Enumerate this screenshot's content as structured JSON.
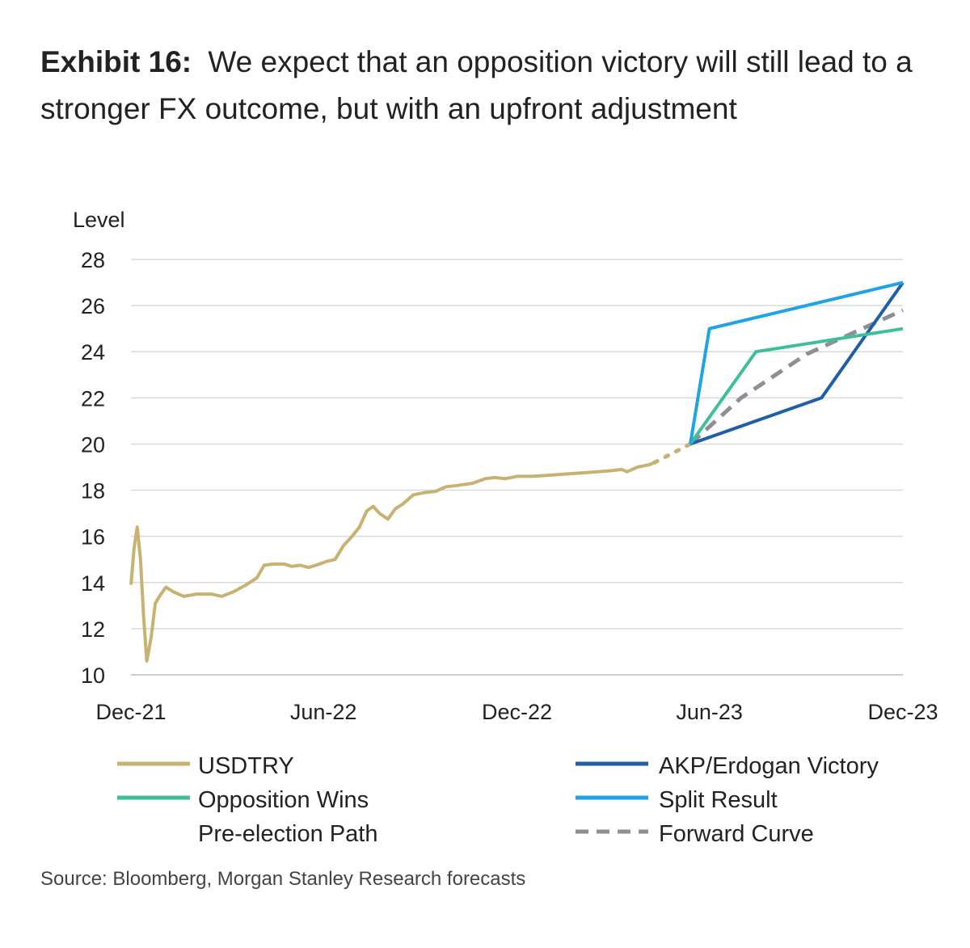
{
  "header": {
    "exhibit": "Exhibit 16:",
    "title": "We expect that an opposition victory will still lead to a stronger FX outcome, but with an upfront adjustment"
  },
  "source": "Source: Bloomberg, Morgan Stanley Research forecasts",
  "colors": {
    "usdtry": "#c8b272",
    "akp": "#1f5ea8",
    "opposition": "#3dbf9c",
    "split": "#1ea3e6",
    "preelection": "#c8b272",
    "forward": "#8e8e96",
    "grid": "#d9d9d9",
    "axis": "#bdbdbd"
  },
  "chart_data": {
    "type": "line",
    "ylabel": "Level",
    "ylim": [
      10,
      28
    ],
    "yticks": [
      10,
      12,
      14,
      16,
      18,
      20,
      22,
      24,
      26,
      28
    ],
    "xlim": [
      "2021-12-01",
      "2023-12-01"
    ],
    "xticks": [
      {
        "date": "2021-12-01",
        "label": "Dec-21"
      },
      {
        "date": "2022-06-01",
        "label": "Jun-22"
      },
      {
        "date": "2022-12-01",
        "label": "Dec-22"
      },
      {
        "date": "2023-06-01",
        "label": "Jun-23"
      },
      {
        "date": "2023-12-01",
        "label": "Dec-23"
      }
    ],
    "grid": true,
    "legend_position": "bottom",
    "series": [
      {
        "key": "usdtry",
        "name": "USDTRY",
        "style": "solid",
        "points": [
          [
            "2021-12-01",
            13.9
          ],
          [
            "2021-12-04",
            15.5
          ],
          [
            "2021-12-07",
            16.4
          ],
          [
            "2021-12-10",
            15.0
          ],
          [
            "2021-12-13",
            12.5
          ],
          [
            "2021-12-16",
            10.6
          ],
          [
            "2021-12-20",
            11.6
          ],
          [
            "2021-12-24",
            13.1
          ],
          [
            "2021-12-28",
            13.4
          ],
          [
            "2022-01-03",
            13.8
          ],
          [
            "2022-01-10",
            13.6
          ],
          [
            "2022-01-20",
            13.4
          ],
          [
            "2022-02-01",
            13.5
          ],
          [
            "2022-02-15",
            13.5
          ],
          [
            "2022-02-25",
            13.4
          ],
          [
            "2022-03-08",
            13.6
          ],
          [
            "2022-03-20",
            13.9
          ],
          [
            "2022-03-30",
            14.2
          ],
          [
            "2022-04-06",
            14.75
          ],
          [
            "2022-04-15",
            14.8
          ],
          [
            "2022-04-25",
            14.8
          ],
          [
            "2022-05-02",
            14.7
          ],
          [
            "2022-05-10",
            14.75
          ],
          [
            "2022-05-18",
            14.65
          ],
          [
            "2022-05-25",
            14.75
          ],
          [
            "2022-06-03",
            14.9
          ],
          [
            "2022-06-12",
            15.0
          ],
          [
            "2022-06-20",
            15.6
          ],
          [
            "2022-06-28",
            16.0
          ],
          [
            "2022-07-05",
            16.4
          ],
          [
            "2022-07-12",
            17.1
          ],
          [
            "2022-07-18",
            17.3
          ],
          [
            "2022-07-24",
            17.0
          ],
          [
            "2022-08-01",
            16.75
          ],
          [
            "2022-08-08",
            17.2
          ],
          [
            "2022-08-15",
            17.4
          ],
          [
            "2022-08-25",
            17.8
          ],
          [
            "2022-09-05",
            17.9
          ],
          [
            "2022-09-15",
            17.95
          ],
          [
            "2022-09-25",
            18.15
          ],
          [
            "2022-10-05",
            18.2
          ],
          [
            "2022-10-20",
            18.3
          ],
          [
            "2022-11-01",
            18.5
          ],
          [
            "2022-11-10",
            18.55
          ],
          [
            "2022-11-20",
            18.5
          ],
          [
            "2022-12-01",
            18.6
          ],
          [
            "2022-12-15",
            18.6
          ],
          [
            "2023-01-01",
            18.65
          ],
          [
            "2023-01-15",
            18.7
          ],
          [
            "2023-02-01",
            18.75
          ],
          [
            "2023-02-15",
            18.8
          ],
          [
            "2023-03-01",
            18.85
          ],
          [
            "2023-03-10",
            18.9
          ],
          [
            "2023-03-15",
            18.8
          ],
          [
            "2023-03-25",
            19.0
          ],
          [
            "2023-04-05",
            19.1
          ],
          [
            "2023-04-10",
            19.2
          ]
        ]
      },
      {
        "key": "preelection",
        "name": "Pre-election Path",
        "style": "dotted",
        "points": [
          [
            "2023-04-10",
            19.2
          ],
          [
            "2023-05-14",
            20.0
          ]
        ]
      },
      {
        "key": "akp",
        "name": "AKP/Erdogan Victory",
        "style": "solid",
        "points": [
          [
            "2023-05-14",
            20.0
          ],
          [
            "2023-09-15",
            22.0
          ],
          [
            "2023-12-01",
            27.0
          ]
        ]
      },
      {
        "key": "opposition",
        "name": "Opposition Wins",
        "style": "solid",
        "points": [
          [
            "2023-05-14",
            20.0
          ],
          [
            "2023-07-15",
            24.0
          ],
          [
            "2023-12-01",
            25.0
          ]
        ]
      },
      {
        "key": "split",
        "name": "Split Result",
        "style": "solid",
        "points": [
          [
            "2023-05-14",
            20.0
          ],
          [
            "2023-06-01",
            25.0
          ],
          [
            "2023-12-01",
            27.0
          ]
        ]
      },
      {
        "key": "forward",
        "name": "Forward Curve",
        "style": "dashed",
        "points": [
          [
            "2023-05-14",
            20.0
          ],
          [
            "2023-07-01",
            22.0
          ],
          [
            "2023-09-01",
            23.9
          ],
          [
            "2023-12-01",
            25.8
          ]
        ]
      }
    ],
    "legend": [
      {
        "key": "usdtry",
        "label": "USDTRY"
      },
      {
        "key": "akp",
        "label": "AKP/Erdogan Victory"
      },
      {
        "key": "opposition",
        "label": "Opposition Wins"
      },
      {
        "key": "split",
        "label": "Split Result"
      },
      {
        "key": "preelection",
        "label": "Pre-election Path"
      },
      {
        "key": "forward",
        "label": "Forward Curve"
      }
    ]
  }
}
